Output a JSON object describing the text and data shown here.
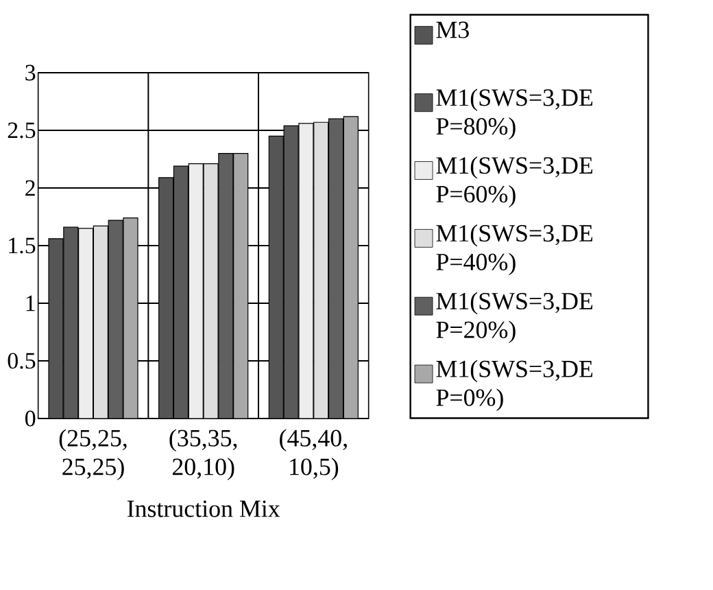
{
  "chart_data": {
    "type": "bar",
    "xlabel": "Instruction Mix",
    "categories": [
      "(25,25, 25,25)",
      "(35,35, 20,10)",
      "(45,40, 10,5)"
    ],
    "series": [
      {
        "name": "M3",
        "color": "#555555",
        "values": [
          1.56,
          2.09,
          2.45
        ]
      },
      {
        "name": "M1(SWS=3,DEP=80%)",
        "color": "#5a5a5a",
        "values": [
          1.66,
          2.19,
          2.54
        ]
      },
      {
        "name": "M1(SWS=3,DEP=60%)",
        "color": "#ededed",
        "values": [
          1.65,
          2.21,
          2.56
        ]
      },
      {
        "name": "M1(SWS=3,DEP=40%)",
        "color": "#dedede",
        "values": [
          1.67,
          2.21,
          2.57
        ]
      },
      {
        "name": "M1(SWS=3,DEP=20%)",
        "color": "#606060",
        "values": [
          1.72,
          2.3,
          2.6
        ]
      },
      {
        "name": "M1(SWS=3,DEP=0%)",
        "color": "#a8a8a8",
        "values": [
          1.74,
          2.3,
          2.62
        ]
      }
    ],
    "ylim": [
      0,
      3
    ],
    "yticks": [
      0,
      0.5,
      1,
      1.5,
      2,
      2.5,
      3
    ],
    "grid": true,
    "legend": "right"
  }
}
